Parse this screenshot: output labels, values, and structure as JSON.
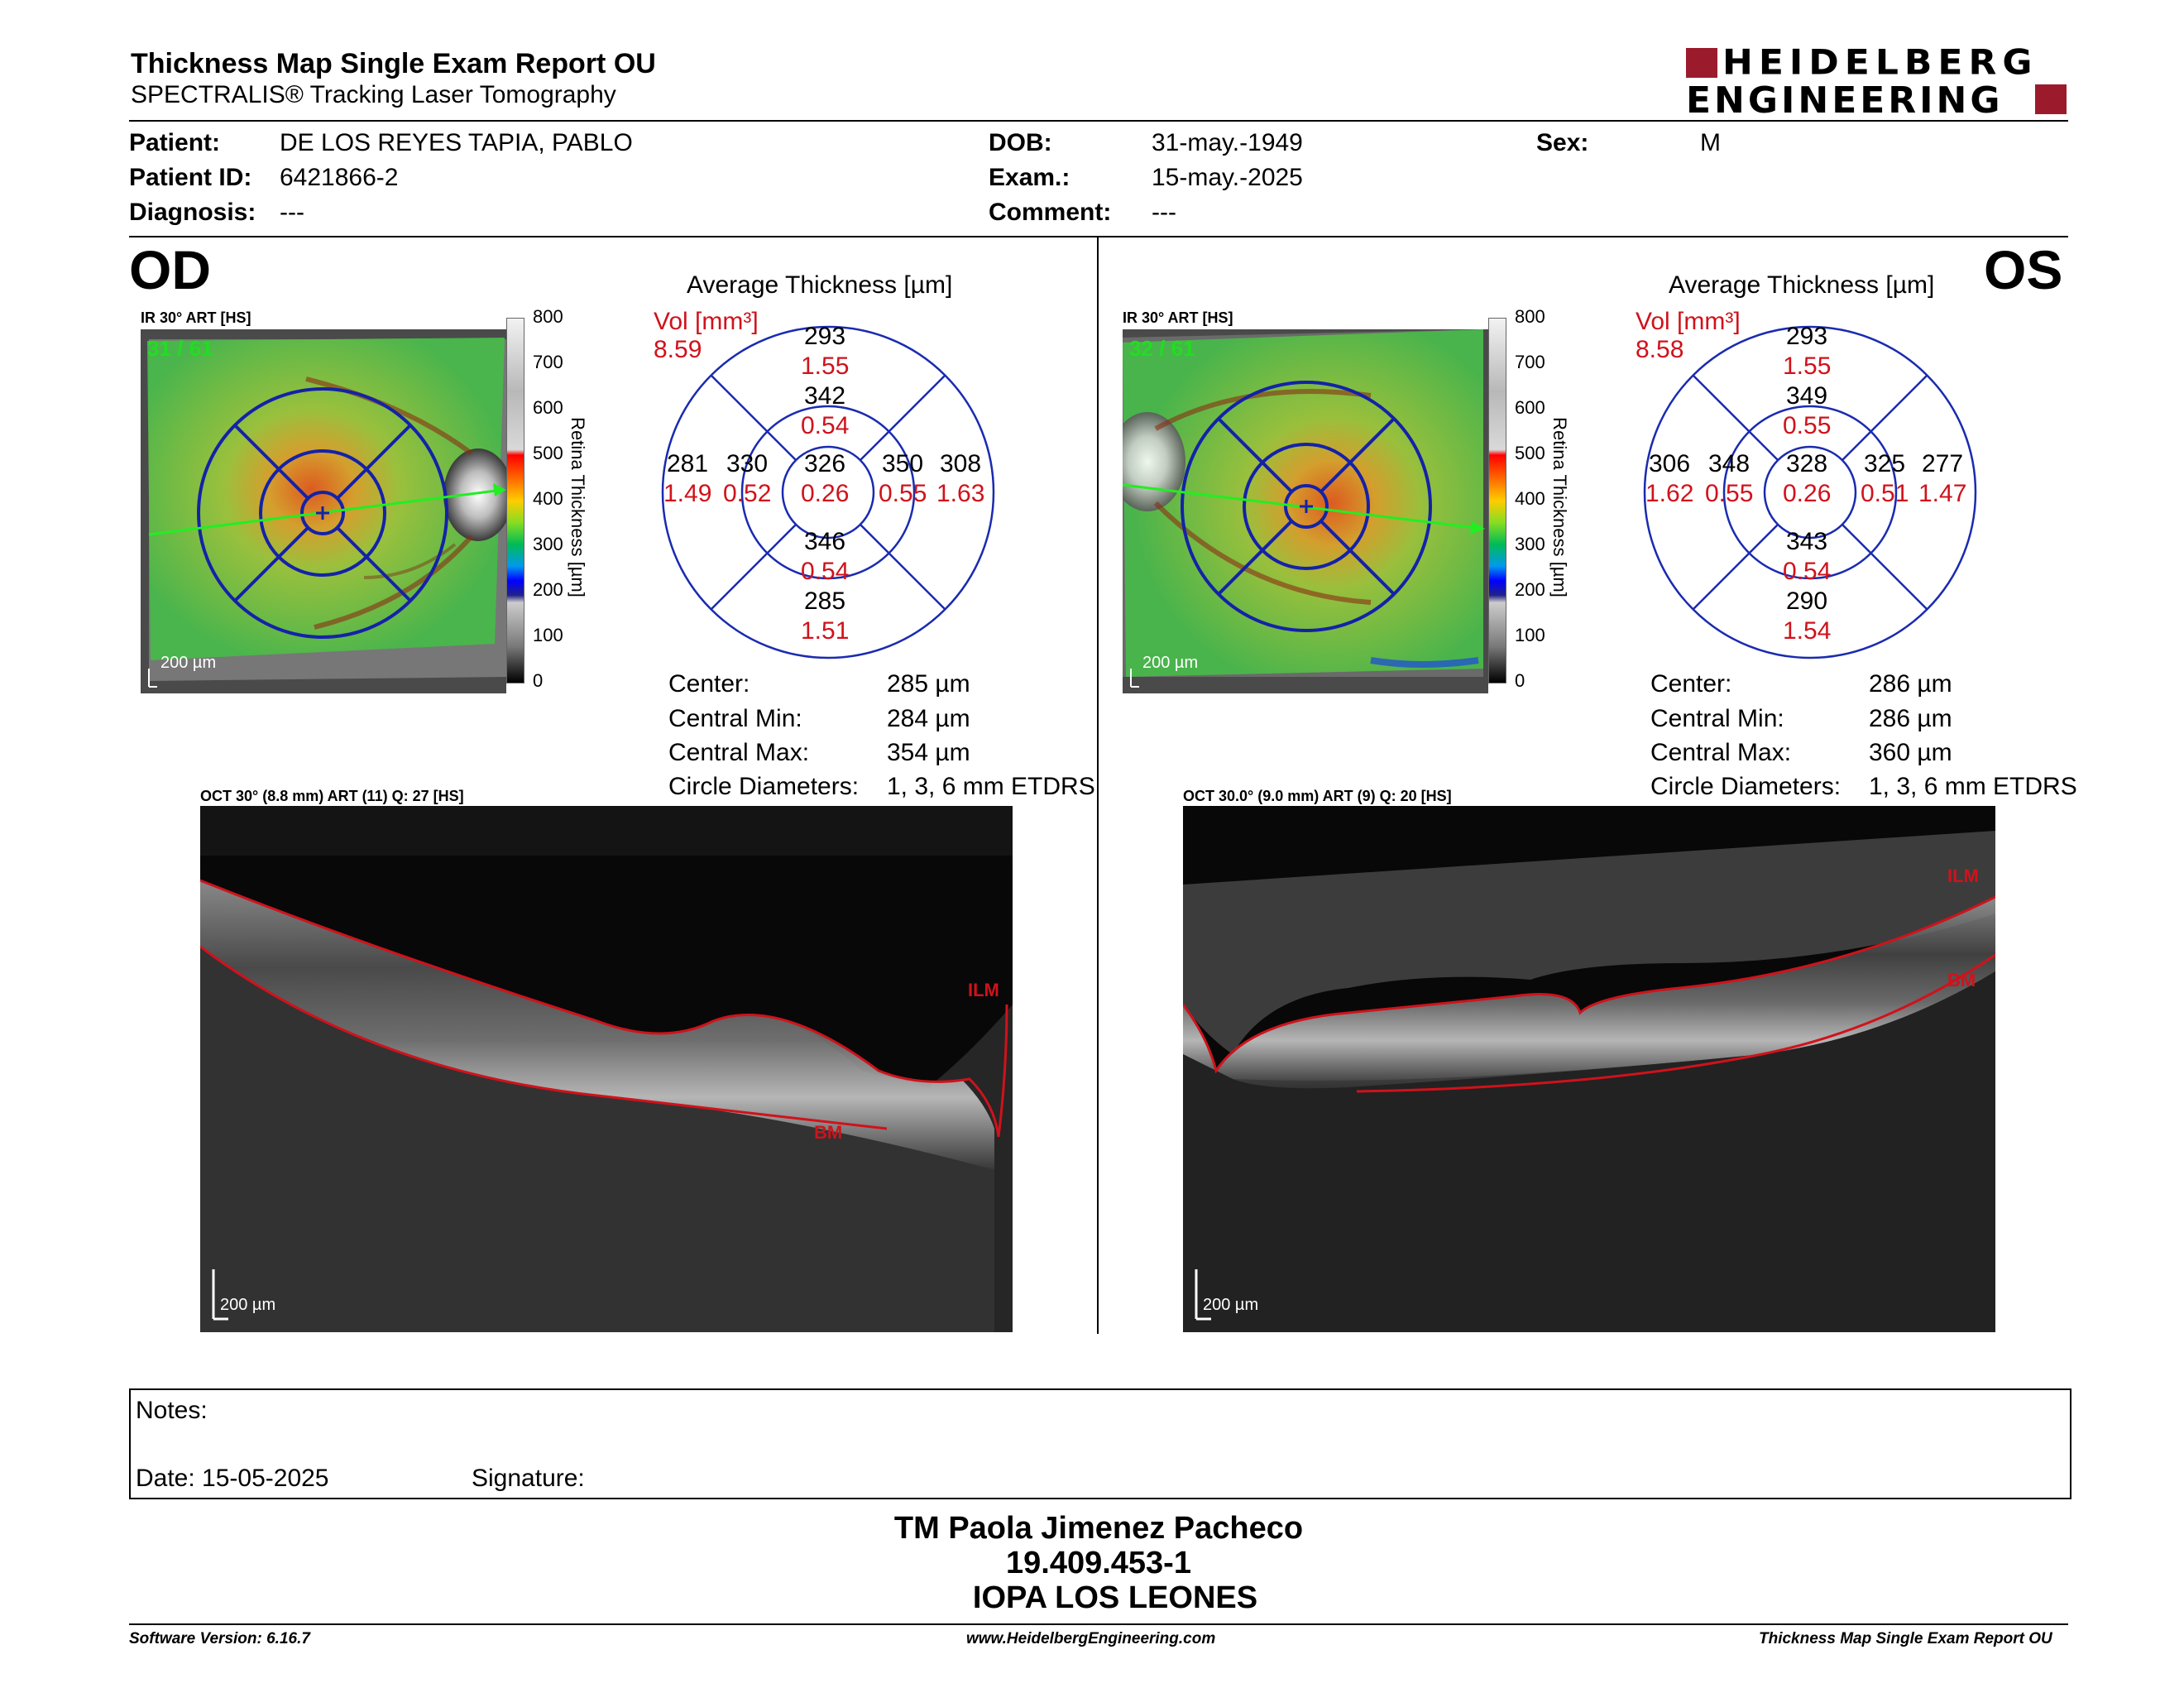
{
  "header": {
    "title": "Thickness Map Single Exam Report OU",
    "subtitle": "SPECTRALIS® Tracking Laser Tomography",
    "logo_line1": "HEIDELBERG",
    "logo_line2": "ENGINEERING"
  },
  "patient": {
    "patient_label": "Patient:",
    "patient_value": "DE LOS REYES TAPIA, PABLO",
    "id_label": "Patient ID:",
    "id_value": "6421866-2",
    "diagnosis_label": "Diagnosis:",
    "diagnosis_value": "---",
    "dob_label": "DOB:",
    "dob_value": "31-may.-1949",
    "exam_label": "Exam.:",
    "exam_value": "15-may.-2025",
    "comment_label": "Comment:",
    "comment_value": "---",
    "sex_label": "Sex:",
    "sex_value": "M"
  },
  "od": {
    "eye": "OD",
    "ir_label": "IR 30° ART [HS]",
    "frame": "31 / 61",
    "scale": "200 µm",
    "avg_title": "Average Thickness [µm]",
    "vol_label": "Vol [mm³]",
    "vol_total": "8.59",
    "etdrs": {
      "center_t": "326",
      "center_v": "0.26",
      "inner_sup_t": "342",
      "inner_sup_v": "0.54",
      "inner_inf_t": "346",
      "inner_inf_v": "0.54",
      "inner_left_t": "330",
      "inner_left_v": "0.52",
      "inner_right_t": "350",
      "inner_right_v": "0.55",
      "outer_sup_t": "293",
      "outer_sup_v": "1.55",
      "outer_inf_t": "285",
      "outer_inf_v": "1.51",
      "outer_left_t": "281",
      "outer_left_v": "1.49",
      "outer_right_t": "308",
      "outer_right_v": "1.63"
    },
    "stats": {
      "center_label": "Center:",
      "center_value": "285 µm",
      "min_label": "Central Min:",
      "min_value": "284 µm",
      "max_label": "Central Max:",
      "max_value": "354 µm",
      "diam_label": "Circle Diameters:",
      "diam_value": "1, 3, 6 mm ETDRS"
    },
    "oct_label": "OCT 30° (8.8 mm) ART (11) Q: 27 [HS]",
    "ilm": "ILM",
    "bm": "BM",
    "oct_scale": "200 µm"
  },
  "os": {
    "eye": "OS",
    "ir_label": "IR 30° ART [HS]",
    "frame": "32 / 61",
    "scale": "200 µm",
    "avg_title": "Average Thickness [µm]",
    "vol_label": "Vol [mm³]",
    "vol_total": "8.58",
    "etdrs": {
      "center_t": "328",
      "center_v": "0.26",
      "inner_sup_t": "349",
      "inner_sup_v": "0.55",
      "inner_inf_t": "343",
      "inner_inf_v": "0.54",
      "inner_left_t": "348",
      "inner_left_v": "0.55",
      "inner_right_t": "325",
      "inner_right_v": "0.51",
      "outer_sup_t": "293",
      "outer_sup_v": "1.55",
      "outer_inf_t": "290",
      "outer_inf_v": "1.54",
      "outer_left_t": "306",
      "outer_left_v": "1.62",
      "outer_right_t": "277",
      "outer_right_v": "1.47"
    },
    "stats": {
      "center_label": "Center:",
      "center_value": "286 µm",
      "min_label": "Central Min:",
      "min_value": "286 µm",
      "max_label": "Central Max:",
      "max_value": "360 µm",
      "diam_label": "Circle Diameters:",
      "diam_value": "1, 3, 6 mm ETDRS"
    },
    "oct_label": "OCT 30.0° (9.0 mm) ART (9) Q: 20 [HS]",
    "ilm": "ILM",
    "bm": "BM",
    "oct_scale": "200 µm"
  },
  "colorbar": {
    "ticks": [
      "800",
      "700",
      "600",
      "500",
      "400",
      "300",
      "200",
      "100",
      "0"
    ],
    "title": "Retina Thickness [µm]"
  },
  "notes": {
    "notes_label": "Notes:",
    "date_label": "Date: 15-05-2025",
    "signature_label": "Signature:"
  },
  "signature": {
    "name": "TM Paola Jimenez Pacheco",
    "rut": "19.409.453-1",
    "institution": "IOPA LOS LEONES"
  },
  "footer": {
    "software": "Software Version: 6.16.7",
    "website": "www.HeidelbergEngineering.com",
    "report": "Thickness Map Single Exam Report OU"
  },
  "colors": {
    "red": "#d0121b",
    "etdrs_blue": "#1a2bb0",
    "logo_red": "#9b1b2d"
  }
}
